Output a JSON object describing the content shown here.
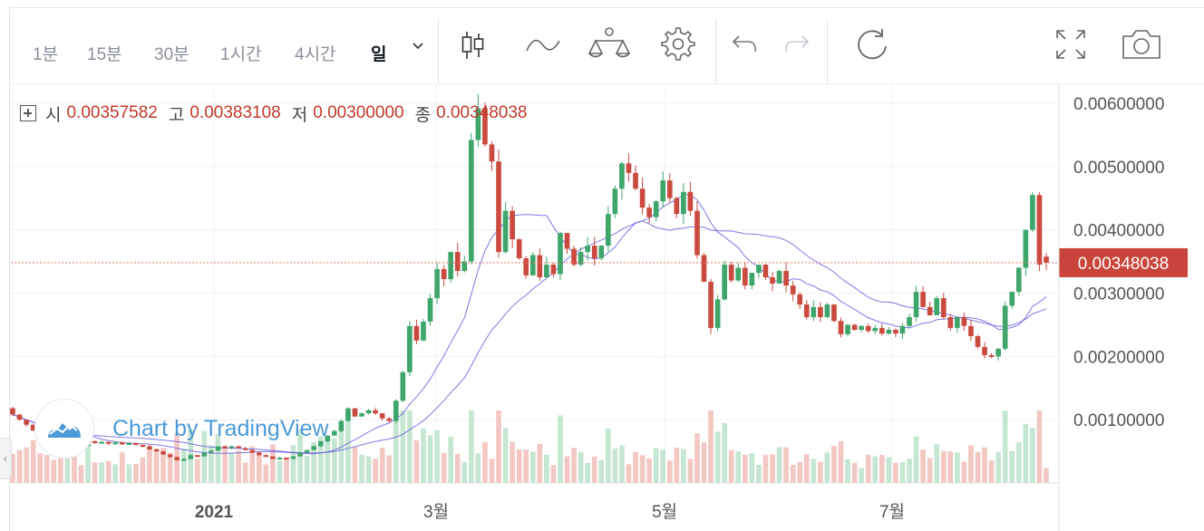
{
  "toolbar": {
    "resolutions": [
      {
        "label": "1분"
      },
      {
        "label": "15분"
      },
      {
        "label": "30분"
      },
      {
        "label": "1시간"
      },
      {
        "label": "4시간"
      },
      {
        "label": "일",
        "active": true
      }
    ],
    "icons": [
      "chevron-down-icon",
      "candles-icon",
      "line-chart-icon",
      "indicators-icon",
      "settings-icon",
      "undo-icon",
      "redo-icon",
      "refresh-icon",
      "fullscreen-icon",
      "camera-icon"
    ]
  },
  "legend": {
    "open_label": "시",
    "open": "0.00357582",
    "high_label": "고",
    "high": "0.00383108",
    "low_label": "저",
    "low": "0.00300000",
    "close_label": "종",
    "close": "0.00348038"
  },
  "watermark": {
    "text": "Chart by TradingView"
  },
  "price_badge": "0.00348038",
  "colors": {
    "up": "#3ea66b",
    "down": "#cb4a3f",
    "ma": "#6a5fe0",
    "last_line": "#e0756a",
    "badge": "#c9453b"
  },
  "chart_data": {
    "type": "candlestick",
    "title": "",
    "x_tick_labels": [
      "2021",
      "3월",
      "5월",
      "7월"
    ],
    "y_tick_labels": [
      "0.00600000",
      "0.00500000",
      "0.00400000",
      "0.00300000",
      "0.00200000",
      "0.00100000"
    ],
    "ylim": [
      0.0,
      0.0063
    ],
    "grid": true,
    "last_price": 0.00348038,
    "candles": [
      [
        0.00118,
        0.00108
      ],
      [
        0.00108,
        0.001
      ],
      [
        0.001,
        0.00092
      ],
      [
        0.00092,
        0.00083
      ],
      [
        0.00083,
        0.00078
      ],
      [
        0.00078,
        0.00072
      ],
      [
        0.00072,
        0.00068
      ],
      [
        0.00068,
        0.00062
      ],
      [
        0.00062,
        0.00065
      ],
      [
        0.00065,
        0.0006
      ],
      [
        0.0006,
        0.00058
      ],
      [
        0.00058,
        0.00066
      ],
      [
        0.00066,
        0.00063
      ],
      [
        0.00063,
        0.00065
      ],
      [
        0.00065,
        0.00062
      ],
      [
        0.00062,
        0.00064
      ],
      [
        0.00064,
        0.00061
      ],
      [
        0.00061,
        0.00063
      ],
      [
        0.00063,
        0.0006
      ],
      [
        0.0006,
        0.00058
      ],
      [
        0.00058,
        0.00053
      ],
      [
        0.00053,
        0.0005
      ],
      [
        0.0005,
        0.00045
      ],
      [
        0.00045,
        0.00041
      ],
      [
        0.00041,
        0.00036
      ],
      [
        0.00036,
        0.00038
      ],
      [
        0.00038,
        0.00044
      ],
      [
        0.00044,
        0.00042
      ],
      [
        0.00042,
        0.00048
      ],
      [
        0.00048,
        0.00051
      ],
      [
        0.00051,
        0.00058
      ],
      [
        0.00058,
        0.00055
      ],
      [
        0.00055,
        0.00058
      ],
      [
        0.00058,
        0.00055
      ],
      [
        0.00055,
        0.00052
      ],
      [
        0.00052,
        0.00048
      ],
      [
        0.00048,
        0.00044
      ],
      [
        0.00044,
        0.00042
      ],
      [
        0.00042,
        0.00038
      ],
      [
        0.00038,
        0.0004
      ],
      [
        0.0004,
        0.00038
      ],
      [
        0.00038,
        0.00042
      ],
      [
        0.00042,
        0.00048
      ],
      [
        0.00048,
        0.00052
      ],
      [
        0.00052,
        0.00058
      ],
      [
        0.00058,
        0.00066
      ],
      [
        0.00066,
        0.00075
      ],
      [
        0.00075,
        0.00082
      ],
      [
        0.00082,
        0.00098
      ],
      [
        0.00098,
        0.00118
      ],
      [
        0.00118,
        0.00105
      ],
      [
        0.00105,
        0.0011
      ],
      [
        0.0011,
        0.00115
      ],
      [
        0.00115,
        0.0011
      ],
      [
        0.0011,
        0.00102
      ],
      [
        0.00102,
        0.00098
      ],
      [
        0.00098,
        0.0013
      ],
      [
        0.0013,
        0.00175
      ],
      [
        0.00175,
        0.00248
      ],
      [
        0.00248,
        0.00225
      ],
      [
        0.00225,
        0.00255
      ],
      [
        0.00255,
        0.00292
      ],
      [
        0.00292,
        0.00338
      ],
      [
        0.00338,
        0.00322
      ],
      [
        0.00322,
        0.00365
      ],
      [
        0.00365,
        0.00335
      ],
      [
        0.00335,
        0.0035
      ],
      [
        0.0035,
        0.00542
      ],
      [
        0.00542,
        0.00592
      ],
      [
        0.00592,
        0.00535
      ],
      [
        0.00535,
        0.00508
      ],
      [
        0.00508,
        0.00365
      ],
      [
        0.00365,
        0.0043
      ],
      [
        0.0043,
        0.00385
      ],
      [
        0.00385,
        0.00355
      ],
      [
        0.00355,
        0.00328
      ],
      [
        0.00328,
        0.0036
      ],
      [
        0.0036,
        0.00325
      ],
      [
        0.00325,
        0.00345
      ],
      [
        0.00345,
        0.0033
      ],
      [
        0.0033,
        0.00395
      ],
      [
        0.00395,
        0.0037
      ],
      [
        0.0037,
        0.00345
      ],
      [
        0.00345,
        0.00365
      ],
      [
        0.00365,
        0.00375
      ],
      [
        0.00375,
        0.00355
      ],
      [
        0.00355,
        0.00375
      ],
      [
        0.00375,
        0.00425
      ],
      [
        0.00425,
        0.00465
      ],
      [
        0.00465,
        0.00505
      ],
      [
        0.00505,
        0.0049
      ],
      [
        0.0049,
        0.00465
      ],
      [
        0.00465,
        0.00435
      ],
      [
        0.00435,
        0.0042
      ],
      [
        0.0042,
        0.00445
      ],
      [
        0.00445,
        0.00478
      ],
      [
        0.00478,
        0.0045
      ],
      [
        0.0045,
        0.00425
      ],
      [
        0.00425,
        0.0046
      ],
      [
        0.0046,
        0.0043
      ],
      [
        0.0043,
        0.0036
      ],
      [
        0.0036,
        0.00318
      ],
      [
        0.00318,
        0.00245
      ],
      [
        0.00245,
        0.0029
      ],
      [
        0.0029,
        0.00345
      ],
      [
        0.00345,
        0.0032
      ],
      [
        0.0032,
        0.0034
      ],
      [
        0.0034,
        0.00312
      ],
      [
        0.00312,
        0.00332
      ],
      [
        0.00332,
        0.00345
      ],
      [
        0.00345,
        0.00325
      ],
      [
        0.00325,
        0.00315
      ],
      [
        0.00315,
        0.00335
      ],
      [
        0.00335,
        0.00312
      ],
      [
        0.00312,
        0.00298
      ],
      [
        0.00298,
        0.00282
      ],
      [
        0.00282,
        0.00262
      ],
      [
        0.00262,
        0.00278
      ],
      [
        0.00278,
        0.00262
      ],
      [
        0.00262,
        0.00282
      ],
      [
        0.00282,
        0.00256
      ],
      [
        0.00256,
        0.00235
      ],
      [
        0.00235,
        0.0025
      ],
      [
        0.0025,
        0.00242
      ],
      [
        0.00242,
        0.00248
      ],
      [
        0.00248,
        0.0024
      ],
      [
        0.0024,
        0.00245
      ],
      [
        0.00245,
        0.00236
      ],
      [
        0.00236,
        0.00242
      ],
      [
        0.00242,
        0.00236
      ],
      [
        0.00236,
        0.00248
      ],
      [
        0.00248,
        0.00262
      ],
      [
        0.00262,
        0.00302
      ],
      [
        0.00302,
        0.00278
      ],
      [
        0.00278,
        0.00265
      ],
      [
        0.00265,
        0.00292
      ],
      [
        0.00292,
        0.00262
      ],
      [
        0.00262,
        0.00245
      ],
      [
        0.00245,
        0.00262
      ],
      [
        0.00262,
        0.00248
      ],
      [
        0.00248,
        0.00232
      ],
      [
        0.00232,
        0.00215
      ],
      [
        0.00215,
        0.00202
      ],
      [
        0.00202,
        0.002
      ],
      [
        0.002,
        0.00212
      ],
      [
        0.00212,
        0.0028
      ],
      [
        0.0028,
        0.00302
      ],
      [
        0.00302,
        0.0034
      ],
      [
        0.0034,
        0.004
      ],
      [
        0.004,
        0.00455
      ],
      [
        0.00455,
        0.00345
      ],
      [
        0.00357582,
        0.00348038
      ]
    ]
  }
}
